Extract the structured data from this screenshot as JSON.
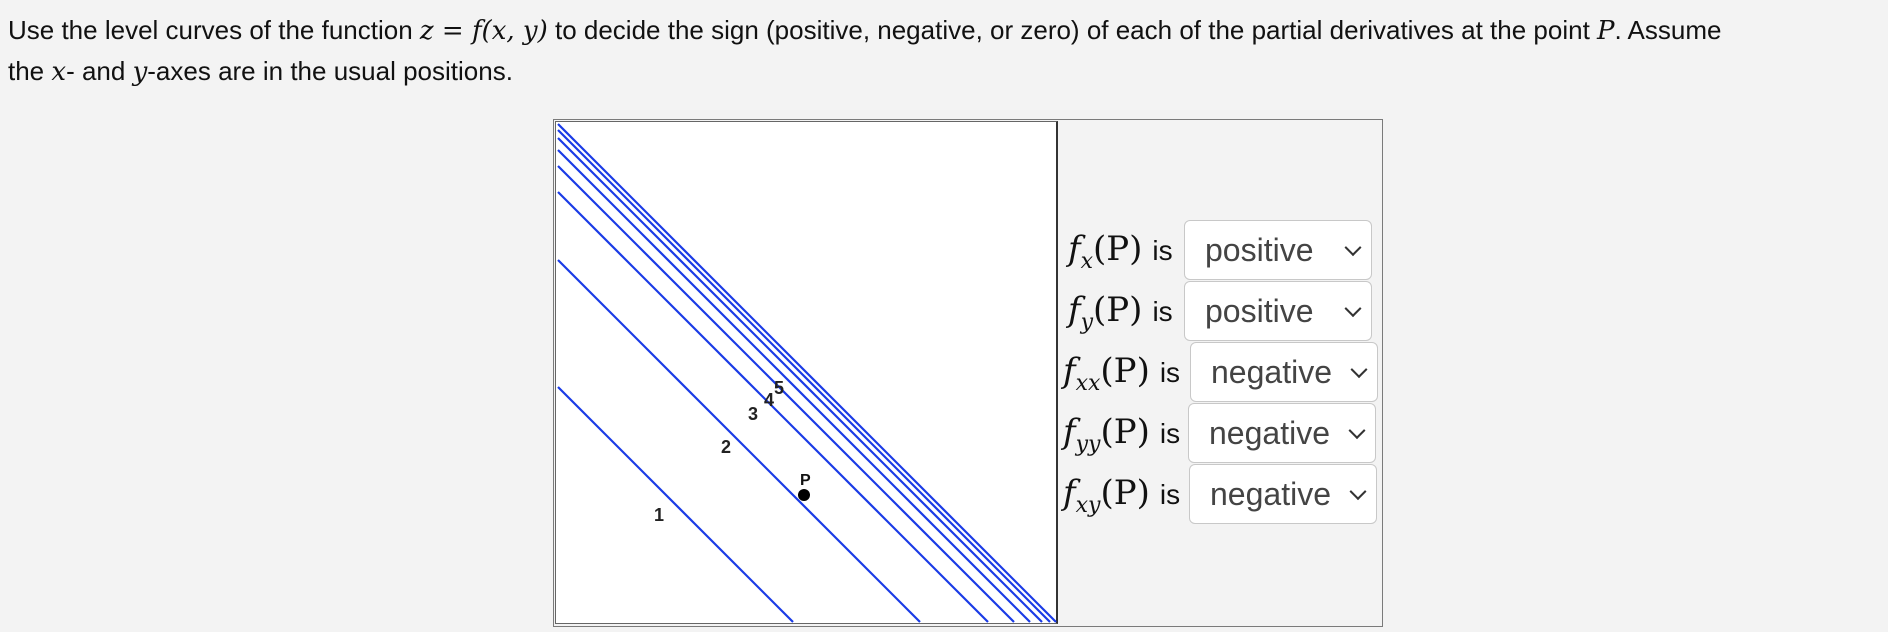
{
  "question": {
    "part1": "Use the level curves of the function",
    "eq_lhs": "z",
    "eq_sign": "=",
    "eq_rhs": "f(x, y)",
    "part2": "to decide the sign (positive, negative, or zero) of each of the partial derivatives at the point",
    "point": "P",
    "part3": ". Assume",
    "line2_a": "the",
    "x_var": "x",
    "line2_b": "- and",
    "y_var": "y",
    "line2_c": "-axes are in the usual positions."
  },
  "plot": {
    "curve_color": "#1a3be6",
    "curve_labels": [
      "1",
      "2",
      "3",
      "4",
      "5"
    ],
    "point_label": "P"
  },
  "derivatives": {
    "is_word": "is",
    "rows": [
      {
        "f": "f",
        "sub": "x",
        "arg": "(P)",
        "value": "positive"
      },
      {
        "f": "f",
        "sub": "y",
        "arg": "(P)",
        "value": "positive"
      },
      {
        "f": "f",
        "sub": "xx",
        "arg": "(P)",
        "value": "negative"
      },
      {
        "f": "f",
        "sub": "yy",
        "arg": "(P)",
        "value": "negative"
      },
      {
        "f": "f",
        "sub": "xy",
        "arg": "(P)",
        "value": "negative"
      }
    ]
  }
}
